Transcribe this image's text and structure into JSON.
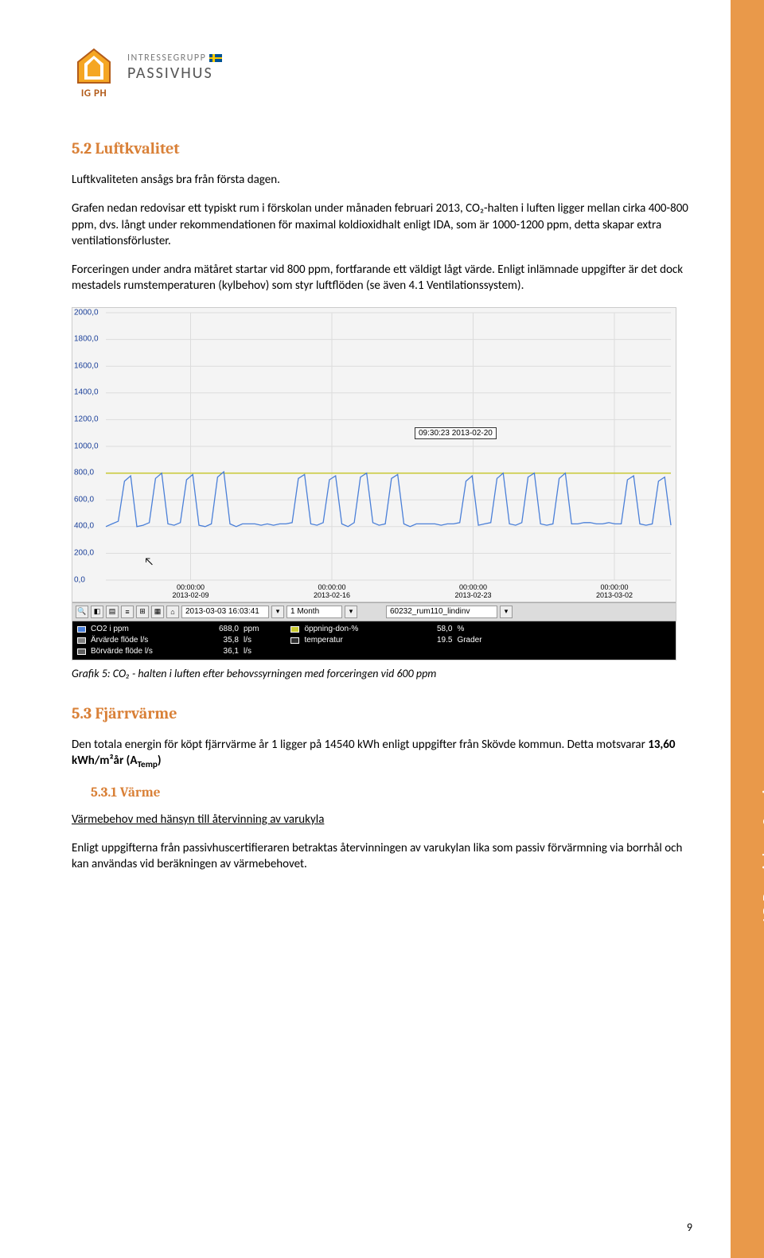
{
  "logo": {
    "igph": "IG PH",
    "line1": "INTRESSEGRUPP",
    "line2": "PASSIVHUS"
  },
  "side_tab": "IG Passivhus Sverige",
  "s52": {
    "heading": "5.2 Luftkvalitet",
    "p1": "Luftkvaliteten ansågs bra från första dagen.",
    "p2": "Grafen nedan redovisar ett typiskt rum i förskolan under månaden februari 2013, CO₂-halten i luften ligger mellan cirka 400-800 ppm, dvs. långt under rekommendationen för maximal koldioxidhalt enligt IDA, som är 1000-1200 ppm, detta skapar extra ventilationsförluster.",
    "p3": "Forceringen under andra mätåret startar vid 800 ppm, fortfarande ett väldigt lågt värde. Enligt inlämnade uppgifter är det dock mestadels rumstemperaturen (kylbehov) som styr luftflöden (se även 4.1 Ventilationssystem)."
  },
  "chart": {
    "ylim": [
      0,
      2000
    ],
    "ytick_step": 200,
    "yticks": [
      "0,0",
      "200,0",
      "400,0",
      "600,0",
      "800,0",
      "1000,0",
      "1200,0",
      "1400,0",
      "1600,0",
      "1800,0",
      "2000,0"
    ],
    "xticks": [
      {
        "t": "00:00:00",
        "d": "2013-02-09"
      },
      {
        "t": "00:00:00",
        "d": "2013-02-16"
      },
      {
        "t": "00:00:00",
        "d": "2013-02-23"
      },
      {
        "t": "00:00:00",
        "d": "2013-03-02"
      }
    ],
    "tooltip": "09:30:23 2013-02-20",
    "toolbar": {
      "datetime": "2013-03-03 16:03:41",
      "range": "1 Month",
      "object": "60232_rum110_lindinv"
    },
    "legend": [
      {
        "name": "CO2 i ppm",
        "val": "688,0",
        "unit": "ppm",
        "color": "#4a7fd8"
      },
      {
        "name": "Ärvärde flöde l/s",
        "val": "35,8",
        "unit": "l/s",
        "color": "#808080"
      },
      {
        "name": "Börvärde flöde l/s",
        "val": "36,1",
        "unit": "l/s",
        "color": "#606060"
      }
    ],
    "legend2": [
      {
        "name": "öppning-don-%",
        "val": "58,0",
        "unit": "%",
        "color": "#c8c830"
      },
      {
        "name": "temperatur",
        "val": "19.5",
        "unit": "Grader",
        "color": "#303030"
      }
    ],
    "series": {
      "co2_color": "#4a7fd8",
      "limit_color": "#c8c830",
      "limit_value": 800,
      "co2_points": [
        400,
        420,
        440,
        740,
        780,
        400,
        410,
        430,
        760,
        800,
        420,
        410,
        430,
        750,
        790,
        410,
        400,
        420,
        770,
        810,
        420,
        400,
        420,
        420,
        420,
        410,
        420,
        410,
        420,
        420,
        430,
        760,
        790,
        420,
        410,
        430,
        750,
        780,
        420,
        400,
        430,
        770,
        800,
        430,
        410,
        420,
        760,
        790,
        420,
        400,
        420,
        420,
        420,
        420,
        410,
        420,
        420,
        430,
        740,
        780,
        410,
        420,
        430,
        760,
        800,
        420,
        410,
        430,
        770,
        800,
        420,
        410,
        420,
        760,
        800,
        420,
        420,
        430,
        430,
        420,
        420,
        430,
        420,
        420,
        750,
        780,
        420,
        410,
        420,
        740,
        770,
        410
      ]
    },
    "background_color": "#f4f4f4",
    "grid_color": "#dcdcdc",
    "axis_label_color": "#1a3f99"
  },
  "caption": "Grafik 5: CO₂ - halten i luften efter behovssyrningen med forceringen vid 600 ppm",
  "s53": {
    "heading": "5.3 Fjärrvärme",
    "p1_a": "Den totala energin för köpt fjärrvärme år 1 ligger på 14540 kWh enligt uppgifter från Skövde kommun. Detta motsvarar ",
    "p1_b": "13,60 kWh/m²år (A",
    "p1_sub": "Temp",
    "p1_c": ")"
  },
  "s531": {
    "heading": "5.3.1 Värme",
    "u1": "Värmebehov med hänsyn till återvinning av varukyla",
    "p1": "Enligt uppgifterna från passivhuscertifieraren betraktas återvinningen av varukylan lika som passiv förvärmning via borrhål och kan användas vid beräkningen av värmebehovet."
  },
  "page_number": "9"
}
